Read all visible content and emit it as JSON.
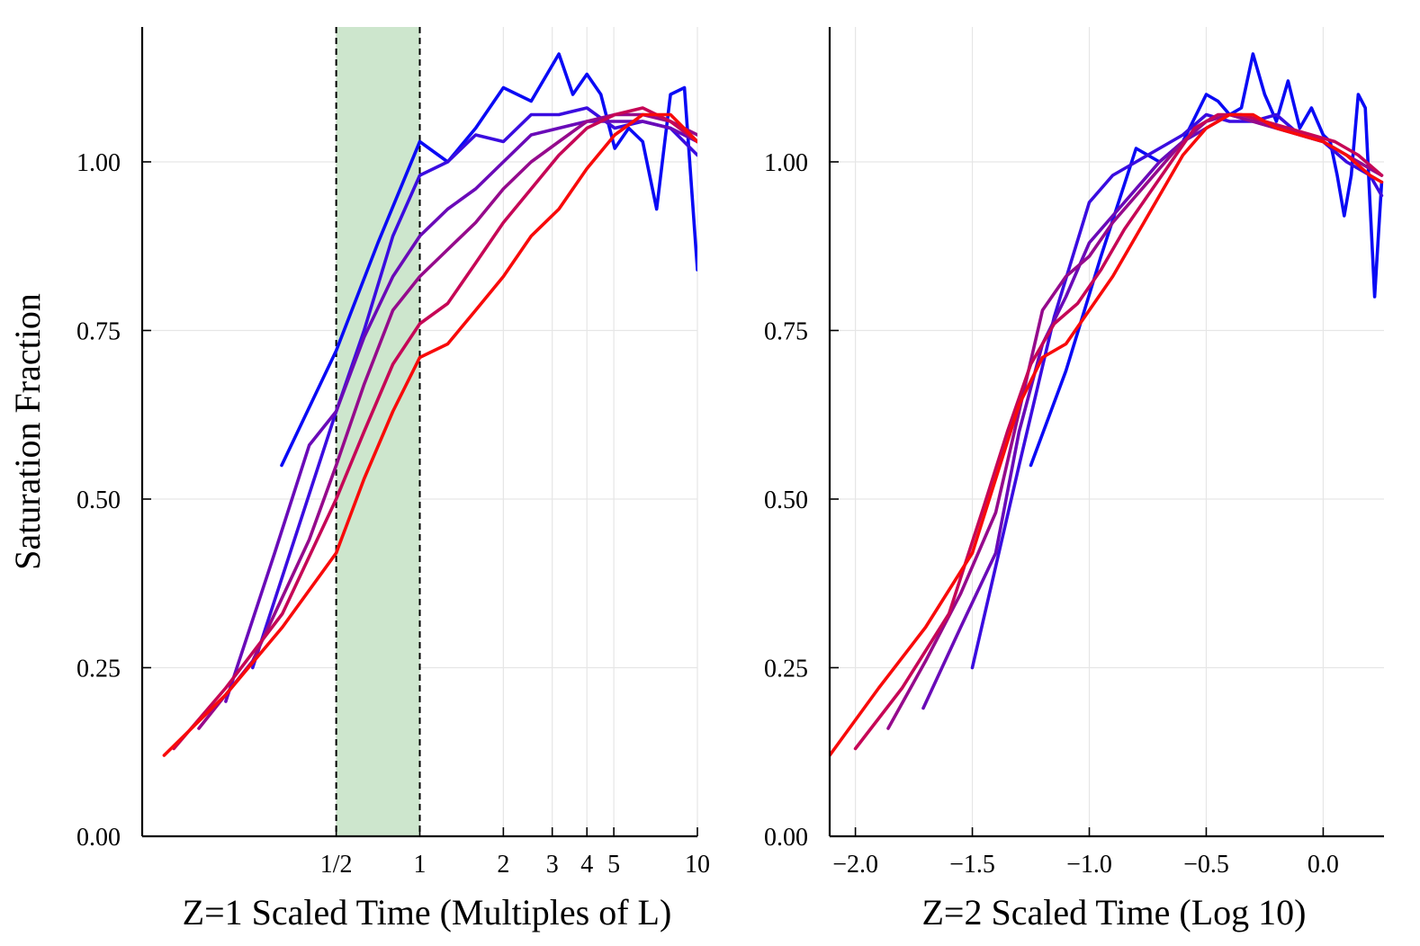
{
  "chart_data": [
    {
      "type": "line",
      "xscale": "log",
      "xlabel": "Z=1 Scaled Time (Multiples of L)",
      "ylabel": "Saturation Fraction",
      "xlim": [
        0.1,
        10
      ],
      "ylim": [
        0,
        1.2
      ],
      "xticks": [
        {
          "value": 0.5,
          "label": "1/2"
        },
        {
          "value": 1,
          "label": "1"
        },
        {
          "value": 2,
          "label": "2"
        },
        {
          "value": 3,
          "label": "3"
        },
        {
          "value": 4,
          "label": "4"
        },
        {
          "value": 5,
          "label": "5"
        },
        {
          "value": 10,
          "label": "10"
        }
      ],
      "yticks": [
        {
          "value": 0,
          "label": "0.00"
        },
        {
          "value": 0.25,
          "label": "0.25"
        },
        {
          "value": 0.5,
          "label": "0.50"
        },
        {
          "value": 0.75,
          "label": "0.75"
        },
        {
          "value": 1.0,
          "label": "1.00"
        }
      ],
      "shaded_region": {
        "x": [
          0.5,
          1
        ],
        "color": "#cde6cd",
        "border": "dashed"
      },
      "series": [
        {
          "name": "series-1",
          "color": "#0a0af5",
          "x": [
            0.318,
            0.5,
            0.707,
            1.0,
            1.26,
            1.59,
            2.0,
            2.52,
            3.17,
            3.56,
            4.0,
            4.49,
            5.04,
            5.66,
            6.35,
            7.13,
            8.0,
            8.98,
            10.0
          ],
          "y": [
            0.55,
            0.72,
            0.88,
            1.03,
            1.0,
            1.05,
            1.11,
            1.09,
            1.16,
            1.1,
            1.13,
            1.1,
            1.02,
            1.05,
            1.03,
            0.93,
            1.1,
            1.11,
            0.84
          ]
        },
        {
          "name": "series-2",
          "color": "#3a0ce0",
          "x": [
            0.25,
            0.5,
            0.63,
            0.8,
            1.0,
            1.26,
            1.59,
            2.0,
            2.52,
            3.17,
            4.0,
            5.04,
            6.35,
            8.0,
            10.0
          ],
          "y": [
            0.25,
            0.63,
            0.75,
            0.89,
            0.98,
            1.0,
            1.04,
            1.03,
            1.07,
            1.07,
            1.08,
            1.05,
            1.06,
            1.05,
            1.01
          ]
        },
        {
          "name": "series-3",
          "color": "#6a0ab8",
          "x": [
            0.2,
            0.3,
            0.4,
            0.5,
            0.63,
            0.8,
            1.0,
            1.26,
            1.59,
            2.0,
            2.52,
            3.17,
            4.0,
            5.04,
            6.35,
            8.0,
            10.0
          ],
          "y": [
            0.2,
            0.42,
            0.58,
            0.63,
            0.74,
            0.83,
            0.89,
            0.93,
            0.96,
            1.0,
            1.04,
            1.05,
            1.06,
            1.06,
            1.06,
            1.05,
            1.03
          ]
        },
        {
          "name": "series-4",
          "color": "#950a8c",
          "x": [
            0.16,
            0.25,
            0.4,
            0.5,
            0.63,
            0.8,
            1.0,
            1.26,
            1.59,
            2.0,
            2.52,
            3.17,
            4.0,
            5.04,
            6.35,
            8.0,
            10.0
          ],
          "y": [
            0.16,
            0.26,
            0.44,
            0.55,
            0.67,
            0.78,
            0.83,
            0.87,
            0.91,
            0.96,
            1.0,
            1.03,
            1.06,
            1.07,
            1.07,
            1.06,
            1.04
          ]
        },
        {
          "name": "series-5",
          "color": "#c60656",
          "x": [
            0.13,
            0.2,
            0.32,
            0.5,
            0.63,
            0.8,
            1.0,
            1.26,
            1.59,
            2.0,
            2.52,
            3.17,
            4.0,
            5.04,
            6.35,
            8.0,
            10.0
          ],
          "y": [
            0.13,
            0.22,
            0.33,
            0.5,
            0.6,
            0.7,
            0.76,
            0.79,
            0.85,
            0.91,
            0.96,
            1.01,
            1.05,
            1.07,
            1.08,
            1.06,
            1.03
          ]
        },
        {
          "name": "series-6",
          "color": "#f80a0a",
          "x": [
            0.12,
            0.2,
            0.32,
            0.5,
            0.63,
            0.8,
            1.0,
            1.26,
            1.59,
            2.0,
            2.52,
            3.17,
            4.0,
            5.04,
            6.35,
            8.0,
            10.0
          ],
          "y": [
            0.12,
            0.21,
            0.31,
            0.42,
            0.53,
            0.63,
            0.71,
            0.73,
            0.78,
            0.83,
            0.89,
            0.93,
            0.99,
            1.04,
            1.07,
            1.07,
            1.03
          ]
        }
      ]
    },
    {
      "type": "line",
      "xlabel": "Z=2 Scaled Time (Log 10)",
      "ylabel": "",
      "xlim": [
        -2.11,
        0.26
      ],
      "ylim": [
        0,
        1.2
      ],
      "xticks": [
        {
          "value": -2.0,
          "label": "−2.0"
        },
        {
          "value": -1.5,
          "label": "−1.5"
        },
        {
          "value": -1.0,
          "label": "−1.0"
        },
        {
          "value": -0.5,
          "label": "−0.5"
        },
        {
          "value": 0.0,
          "label": "0.0"
        }
      ],
      "yticks": [
        {
          "value": 0,
          "label": "0.00"
        },
        {
          "value": 0.25,
          "label": "0.25"
        },
        {
          "value": 0.5,
          "label": "0.50"
        },
        {
          "value": 0.75,
          "label": "0.75"
        },
        {
          "value": 1.0,
          "label": "1.00"
        }
      ],
      "series": [
        {
          "name": "series-1",
          "color": "#0a0af5",
          "x": [
            -1.25,
            -1.1,
            -0.95,
            -0.8,
            -0.7,
            -0.6,
            -0.5,
            -0.45,
            -0.4,
            -0.35,
            -0.3,
            -0.25,
            -0.2,
            -0.15,
            -0.1,
            -0.05,
            0.0,
            0.03,
            0.06,
            0.09,
            0.12,
            0.15,
            0.18,
            0.22,
            0.25
          ],
          "y": [
            0.55,
            0.69,
            0.86,
            1.02,
            1.0,
            1.03,
            1.1,
            1.09,
            1.07,
            1.08,
            1.16,
            1.1,
            1.06,
            1.12,
            1.05,
            1.08,
            1.04,
            1.03,
            0.98,
            0.92,
            0.98,
            1.1,
            1.08,
            0.8,
            0.97
          ]
        },
        {
          "name": "series-2",
          "color": "#3a0ce0",
          "x": [
            -1.5,
            -1.3,
            -1.15,
            -1.0,
            -0.9,
            -0.8,
            -0.7,
            -0.6,
            -0.5,
            -0.4,
            -0.3,
            -0.2,
            -0.1,
            0.0,
            0.1,
            0.2,
            0.25
          ],
          "y": [
            0.25,
            0.55,
            0.77,
            0.94,
            0.98,
            1.0,
            1.02,
            1.04,
            1.07,
            1.06,
            1.06,
            1.07,
            1.04,
            1.03,
            1.0,
            0.98,
            0.95
          ]
        },
        {
          "name": "series-3",
          "color": "#6a0ab8",
          "x": [
            -1.71,
            -1.55,
            -1.4,
            -1.3,
            -1.2,
            -1.1,
            -1.0,
            -0.9,
            -0.8,
            -0.7,
            -0.6,
            -0.5,
            -0.4,
            -0.3,
            -0.2,
            -0.1,
            0.0,
            0.1,
            0.2,
            0.25
          ],
          "y": [
            0.19,
            0.31,
            0.42,
            0.6,
            0.73,
            0.8,
            0.88,
            0.92,
            0.96,
            1.0,
            1.03,
            1.05,
            1.07,
            1.06,
            1.05,
            1.04,
            1.03,
            1.01,
            0.99,
            0.98
          ]
        },
        {
          "name": "series-4",
          "color": "#950a8c",
          "x": [
            -1.86,
            -1.7,
            -1.55,
            -1.4,
            -1.3,
            -1.2,
            -1.1,
            -1.0,
            -0.9,
            -0.8,
            -0.7,
            -0.6,
            -0.5,
            -0.4,
            -0.3,
            -0.2,
            -0.1,
            0.0,
            0.1,
            0.2,
            0.25
          ],
          "y": [
            0.16,
            0.26,
            0.36,
            0.48,
            0.63,
            0.78,
            0.83,
            0.86,
            0.91,
            0.95,
            0.99,
            1.03,
            1.06,
            1.07,
            1.06,
            1.05,
            1.04,
            1.03,
            1.01,
            0.99,
            0.98
          ]
        },
        {
          "name": "series-5",
          "color": "#c60656",
          "x": [
            -2.0,
            -1.8,
            -1.6,
            -1.45,
            -1.35,
            -1.25,
            -1.15,
            -1.05,
            -0.95,
            -0.85,
            -0.75,
            -0.65,
            -0.55,
            -0.45,
            -0.35,
            -0.25,
            -0.15,
            -0.05,
            0.05,
            0.15,
            0.25
          ],
          "y": [
            0.13,
            0.22,
            0.33,
            0.49,
            0.6,
            0.7,
            0.76,
            0.79,
            0.84,
            0.9,
            0.95,
            1.0,
            1.05,
            1.07,
            1.07,
            1.06,
            1.05,
            1.04,
            1.03,
            1.01,
            0.98
          ]
        },
        {
          "name": "series-6",
          "color": "#f80a0a",
          "x": [
            -2.11,
            -1.9,
            -1.7,
            -1.5,
            -1.4,
            -1.3,
            -1.2,
            -1.1,
            -1.0,
            -0.9,
            -0.8,
            -0.7,
            -0.6,
            -0.5,
            -0.4,
            -0.3,
            -0.2,
            -0.1,
            0.0,
            0.1,
            0.2,
            0.25
          ],
          "y": [
            0.12,
            0.22,
            0.31,
            0.42,
            0.53,
            0.64,
            0.71,
            0.73,
            0.78,
            0.83,
            0.89,
            0.95,
            1.01,
            1.05,
            1.07,
            1.07,
            1.05,
            1.04,
            1.03,
            1.01,
            0.98,
            0.97
          ]
        }
      ]
    }
  ]
}
